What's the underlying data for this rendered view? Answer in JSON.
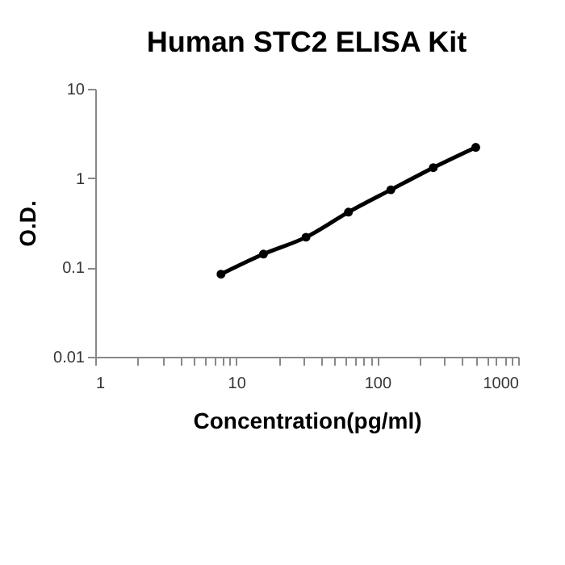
{
  "chart_data": {
    "type": "line",
    "title": "Human STC2 ELISA Kit",
    "xlabel": "Concentration(pg/ml)",
    "ylabel": "O.D.",
    "log": "xy",
    "marker": "circle",
    "line_style": "solid",
    "grid": false,
    "legend": false,
    "x": [
      7.8,
      15.6,
      31.25,
      62.5,
      125,
      250,
      500
    ],
    "series": [
      {
        "color": "#000000",
        "values": [
          0.084,
          0.141,
          0.218,
          0.416,
          0.74,
          1.31,
          2.21
        ]
      }
    ],
    "xlim": [
      1,
      1000
    ],
    "ylim": [
      0.01,
      10
    ],
    "xticks": [
      1,
      {
        "value": 2,
        "label": null
      },
      {
        "value": 3,
        "label": null
      },
      {
        "value": 4,
        "label": null
      },
      {
        "value": 5,
        "label": null
      },
      {
        "value": 6,
        "label": null
      },
      {
        "value": 7,
        "label": null
      },
      {
        "value": 8,
        "label": null
      },
      {
        "value": 9,
        "label": null
      },
      10,
      {
        "value": 20,
        "label": null
      },
      {
        "value": 30,
        "label": null
      },
      {
        "value": 40,
        "label": null
      },
      {
        "value": 50,
        "label": null
      },
      {
        "value": 60,
        "label": null
      },
      {
        "value": 70,
        "label": null
      },
      {
        "value": 80,
        "label": null
      },
      {
        "value": 90,
        "label": null
      },
      100,
      {
        "value": 200,
        "label": null
      },
      {
        "value": 300,
        "label": null
      },
      {
        "value": 400,
        "label": null
      },
      {
        "value": 500,
        "label": null
      },
      {
        "value": 600,
        "label": null
      },
      {
        "value": 700,
        "label": null
      },
      {
        "value": 800,
        "label": null
      },
      {
        "value": 900,
        "label": null
      },
      1000
    ],
    "yticks": [
      0.01,
      0.1,
      1,
      10
    ]
  }
}
